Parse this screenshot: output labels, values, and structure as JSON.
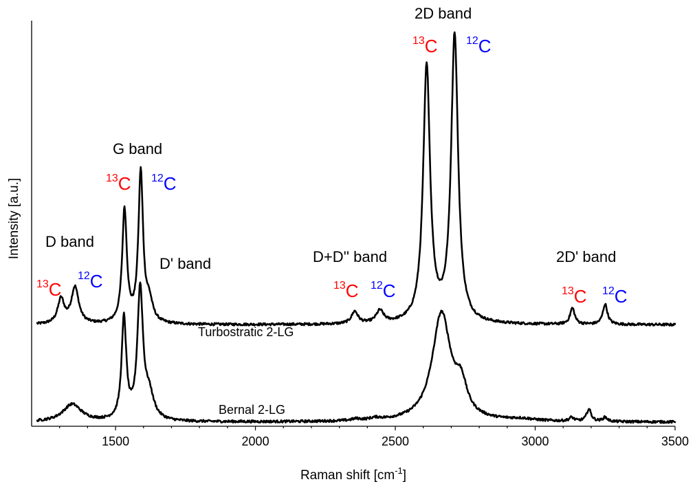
{
  "chart_data": {
    "type": "line",
    "xlabel_main": "Raman shift [cm",
    "xlabel_sup": "-1",
    "xlabel_end": "]",
    "ylabel": "Intensity [a.u.]",
    "xlim": [
      1200,
      3500
    ],
    "ylim": [
      0,
      1
    ],
    "x_ticks": [
      1500,
      2000,
      2500,
      3000,
      3500
    ],
    "y_ticks_labeled": false,
    "grid": false,
    "series": [
      {
        "name": "Turbostratic 2-LG",
        "baseline": 0.25,
        "peaks": [
          {
            "center": 1305,
            "height": 0.06,
            "width": 14
          },
          {
            "center": 1355,
            "height": 0.09,
            "width": 16
          },
          {
            "center": 1532,
            "height": 0.28,
            "width": 10
          },
          {
            "center": 1590,
            "height": 0.37,
            "width": 10
          },
          {
            "center": 1620,
            "height": 0.05,
            "width": 15
          },
          {
            "center": 2355,
            "height": 0.03,
            "width": 14
          },
          {
            "center": 2445,
            "height": 0.03,
            "width": 16
          },
          {
            "center": 2612,
            "height": 0.63,
            "width": 15
          },
          {
            "center": 2712,
            "height": 0.71,
            "width": 15
          },
          {
            "center": 3133,
            "height": 0.04,
            "width": 10
          },
          {
            "center": 3250,
            "height": 0.05,
            "width": 10
          }
        ]
      },
      {
        "name": "Bernal 2-LG",
        "baseline": 0.01,
        "peaks": [
          {
            "center": 1345,
            "height": 0.043,
            "width": 40
          },
          {
            "center": 1530,
            "height": 0.25,
            "width": 10
          },
          {
            "center": 1588,
            "height": 0.32,
            "width": 12
          },
          {
            "center": 1620,
            "height": 0.06,
            "width": 20
          },
          {
            "center": 2360,
            "height": 0.004,
            "width": 20
          },
          {
            "center": 2430,
            "height": 0.005,
            "width": 25
          },
          {
            "center": 2665,
            "height": 0.265,
            "width": 40
          },
          {
            "center": 2735,
            "height": 0.07,
            "width": 25
          },
          {
            "center": 2950,
            "height": 0.005,
            "width": 60
          },
          {
            "center": 3130,
            "height": 0.009,
            "width": 10
          },
          {
            "center": 3192,
            "height": 0.03,
            "width": 10
          },
          {
            "center": 3250,
            "height": 0.01,
            "width": 10
          }
        ]
      }
    ],
    "annotations": {
      "band_labels": [
        "D band",
        "G band",
        "D' band",
        "D+D'' band",
        "2D band",
        "2D' band"
      ],
      "isotope_labels": [
        {
          "mass": "13",
          "symbol": "C",
          "color": "#ff0000"
        },
        {
          "mass": "12",
          "symbol": "C",
          "color": "#0000ff"
        },
        {
          "mass": "13",
          "symbol": "C",
          "color": "#ff0000"
        },
        {
          "mass": "12",
          "symbol": "C",
          "color": "#0000ff"
        },
        {
          "mass": "13",
          "symbol": "C",
          "color": "#ff0000"
        },
        {
          "mass": "12",
          "symbol": "C",
          "color": "#0000ff"
        },
        {
          "mass": "13",
          "symbol": "C",
          "color": "#ff0000"
        },
        {
          "mass": "12",
          "symbol": "C",
          "color": "#0000ff"
        },
        {
          "mass": "13",
          "symbol": "C",
          "color": "#ff0000"
        },
        {
          "mass": "12",
          "symbol": "C",
          "color": "#0000ff"
        }
      ]
    }
  }
}
